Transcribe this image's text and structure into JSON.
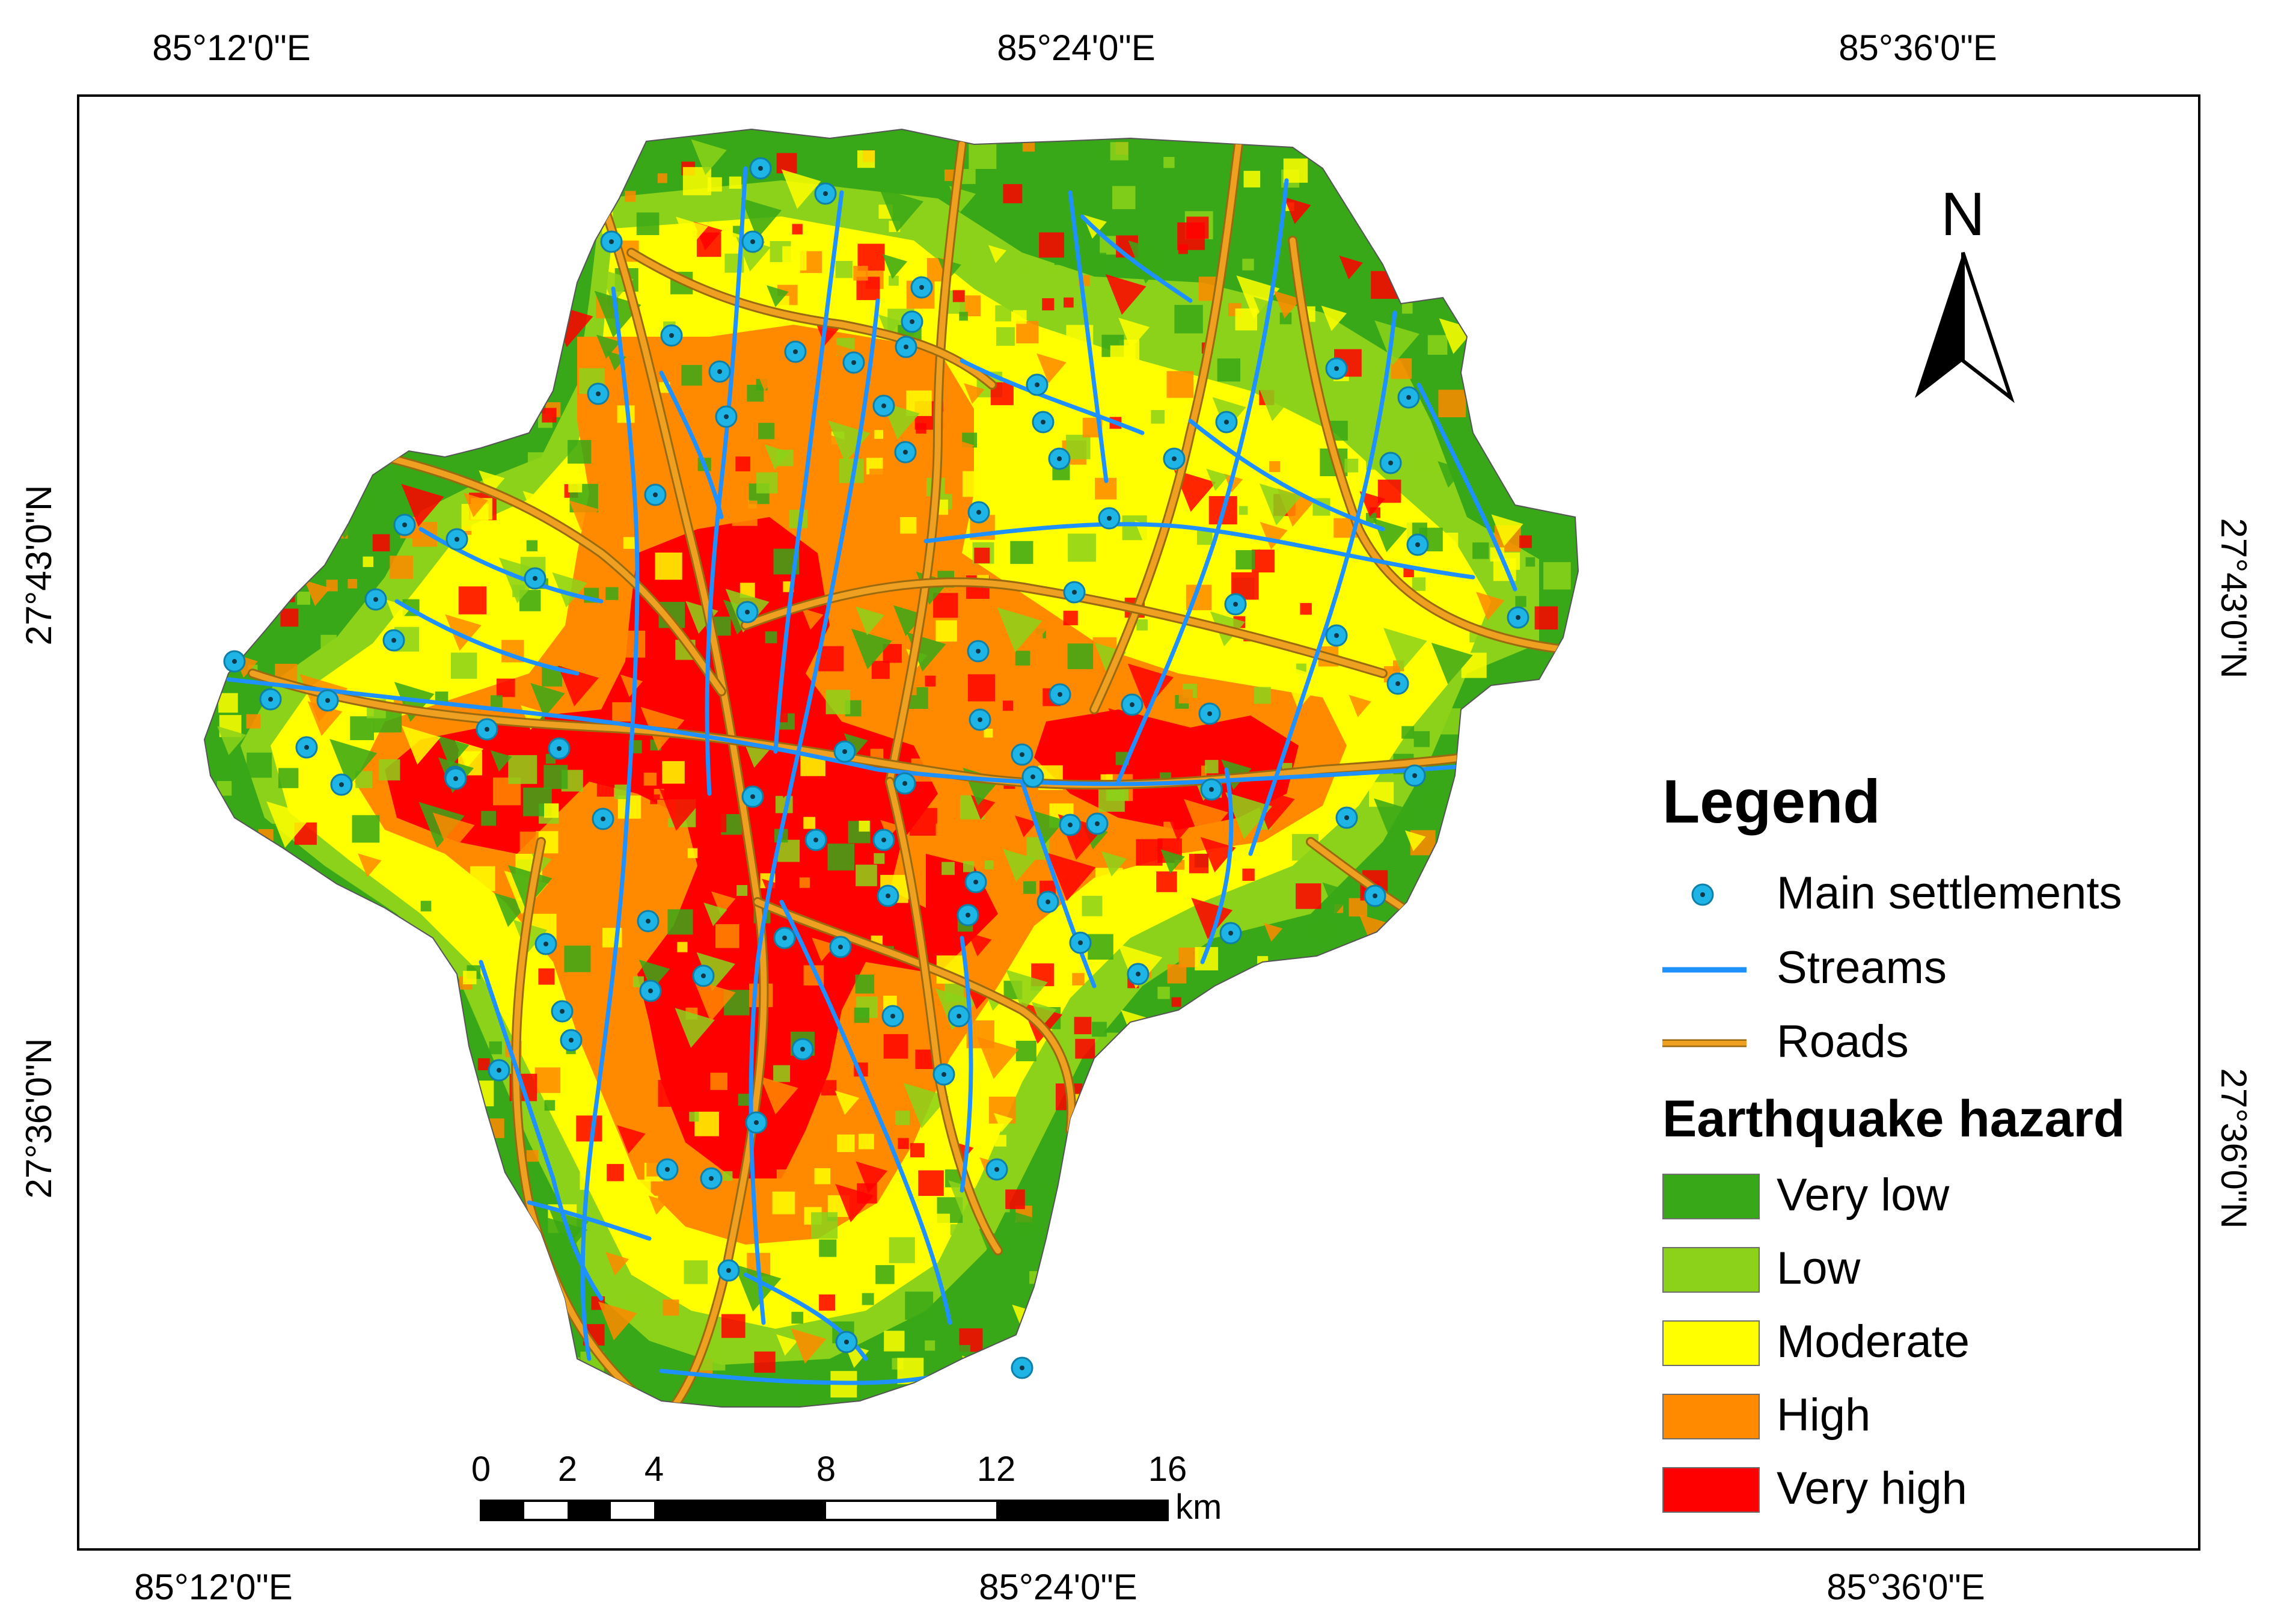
{
  "coordinates": {
    "top": [
      "85°12'0\"E",
      "85°24'0\"E",
      "85°36'0\"E"
    ],
    "bottom": [
      "85°12'0\"E",
      "85°24'0\"E",
      "85°36'0\"E"
    ],
    "left": [
      "27°43'0\"N",
      "27°36'0\"N"
    ],
    "right": [
      "27°43'0\"N",
      "27°36'0\"N"
    ]
  },
  "north_arrow": {
    "letter": "N"
  },
  "legend": {
    "title": "Legend",
    "symbols": [
      {
        "label": "Main settlements",
        "icon": "settlement-dot-icon",
        "color": "#1fb4e6"
      },
      {
        "label": "Streams",
        "icon": "stream-line-icon",
        "color": "#1e90ff"
      },
      {
        "label": "Roads",
        "icon": "road-line-icon",
        "color": "#f0a020"
      }
    ],
    "hazard_title": "Earthquake hazard",
    "hazard_classes": [
      {
        "label": "Very low",
        "color": "#38a818"
      },
      {
        "label": "Low",
        "color": "#8cd21a"
      },
      {
        "label": "Moderate",
        "color": "#ffff00"
      },
      {
        "label": "High",
        "color": "#ff8a00"
      },
      {
        "label": "Very high",
        "color": "#ff0000"
      }
    ]
  },
  "scale_bar": {
    "ticks": [
      "0",
      "2",
      "4",
      "8",
      "12",
      "16"
    ],
    "unit": "km"
  },
  "colors": {
    "settlement": "#1fb4e6",
    "stream": "#1e90ff",
    "road": "#f0a020",
    "road_edge": "#9a6a10"
  }
}
